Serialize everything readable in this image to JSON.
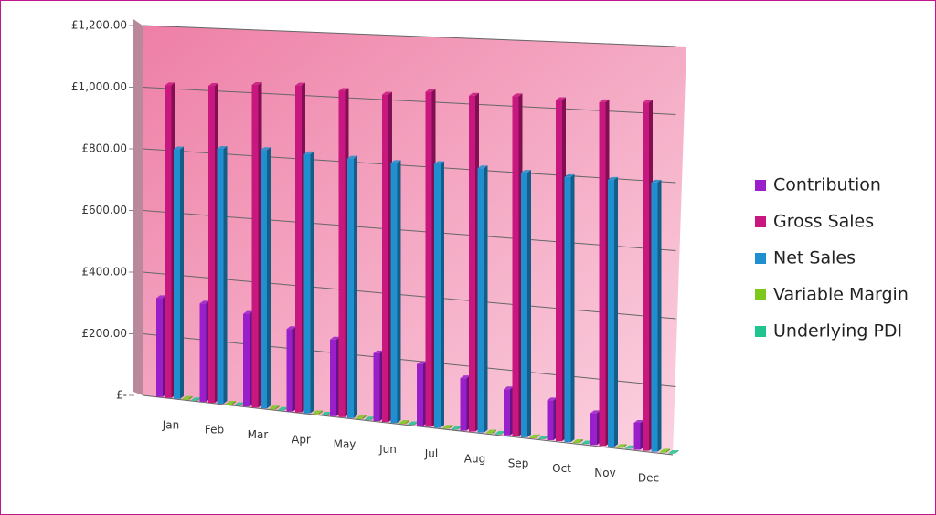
{
  "chart_data": {
    "type": "bar",
    "categories": [
      "Jan",
      "Feb",
      "Mar",
      "Apr",
      "May",
      "Jun",
      "Jul",
      "Aug",
      "Sep",
      "Oct",
      "Nov",
      "Dec"
    ],
    "series": [
      {
        "name": "Contribution",
        "color": "#9a1fcb",
        "values": [
          320,
          315,
          295,
          260,
          240,
          210,
          190,
          160,
          140,
          120,
          95,
          80
        ]
      },
      {
        "name": "Gross Sales",
        "color": "#c8177f",
        "values": [
          1010,
          1015,
          1025,
          1030,
          1020,
          1015,
          1030,
          1025,
          1030,
          1025,
          1025,
          1030
        ]
      },
      {
        "name": "Net Sales",
        "color": "#1f8fcf",
        "values": [
          805,
          815,
          820,
          815,
          810,
          805,
          810,
          805,
          800,
          795,
          795,
          795
        ]
      },
      {
        "name": "Variable Margin",
        "color": "#7dc81d",
        "values": [
          3,
          3,
          3,
          3,
          3,
          3,
          3,
          3,
          3,
          3,
          3,
          3
        ]
      },
      {
        "name": "Underlying PDI",
        "color": "#1fc48e",
        "values": [
          2,
          2,
          2,
          2,
          2,
          2,
          2,
          2,
          2,
          2,
          2,
          2
        ]
      }
    ],
    "ylim": [
      0,
      1200
    ],
    "yticks": [
      {
        "value": 0,
        "label": "£-"
      },
      {
        "value": 200,
        "label": "£200.00"
      },
      {
        "value": 400,
        "label": "£400.00"
      },
      {
        "value": 600,
        "label": "£600.00"
      },
      {
        "value": 800,
        "label": "£800.00"
      },
      {
        "value": 1000,
        "label": "£1,000.00"
      },
      {
        "value": 1200,
        "label": "£1,200.00"
      }
    ],
    "grid": true,
    "legend": "right"
  }
}
